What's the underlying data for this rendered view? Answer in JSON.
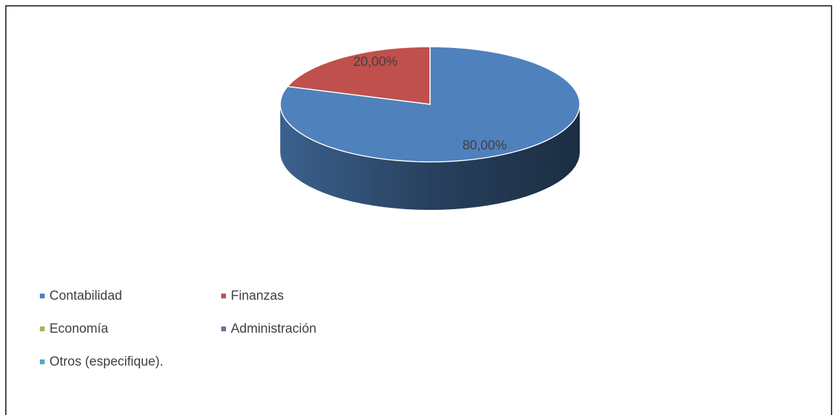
{
  "chart_data": {
    "type": "pie",
    "categories": [
      "Contabilidad",
      "Finanzas",
      "Economía",
      "Administración",
      "Otros (especifique)."
    ],
    "values": [
      80,
      20,
      0,
      0,
      0
    ],
    "value_labels": [
      "80,00%",
      "20,00%",
      null,
      null,
      null
    ],
    "colors": [
      "#4f81bd",
      "#c0504d",
      "#9bbb59",
      "#8064a2",
      "#4bacc6"
    ],
    "legend": "bottom"
  }
}
